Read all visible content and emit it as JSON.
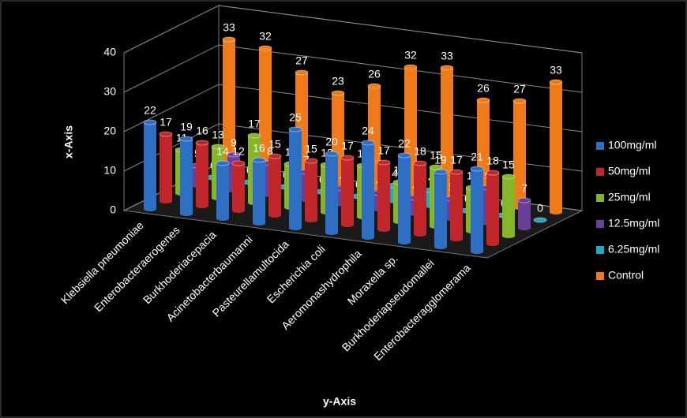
{
  "chart_data": {
    "type": "bar3d",
    "x_label": "y-Axis",
    "y_label": "x-Axis",
    "categories": [
      "Klebsiella pneumoniae",
      "Enterobacteraerogenes",
      "Burkhoderiacepacia",
      "Acinetobacterbaumanni",
      "Pasteurellamultocida",
      "Escherichia coli",
      "Aeromonashydrophila",
      "Moraxella sp.",
      "Burkhoderiapseudomallei",
      "Enterobacteragglomerama"
    ],
    "series": [
      {
        "name": "100mg/ml",
        "color": "#2e6fc4",
        "values": [
          22,
          19,
          14,
          16,
          25,
          20,
          24,
          22,
          19,
          21
        ]
      },
      {
        "name": "50mg/ml",
        "color": "#c0262a",
        "values": [
          17,
          16,
          12,
          15,
          15,
          17,
          17,
          18,
          17,
          18
        ]
      },
      {
        "name": "25mg/ml",
        "color": "#86b52a",
        "values": [
          11,
          13,
          17,
          11,
          12,
          13,
          10,
          15,
          11,
          15
        ]
      },
      {
        "name": "12.5mg/ml",
        "color": "#6a3f99",
        "values": [
          5,
          9,
          8,
          7,
          4,
          4,
          4,
          5,
          9,
          7
        ]
      },
      {
        "name": "6.25mg/ml",
        "color": "#25a7c1",
        "values": [
          0,
          0,
          0,
          0,
          0,
          4,
          4,
          0,
          0,
          0
        ]
      },
      {
        "name": "Control",
        "color": "#f07a1a",
        "values": [
          33,
          32,
          27,
          23,
          26,
          32,
          33,
          26,
          27,
          33
        ]
      }
    ],
    "ylim": [
      0,
      40
    ],
    "yticks": [
      0,
      10,
      20,
      30,
      40
    ],
    "grid": true,
    "legend": "right"
  }
}
